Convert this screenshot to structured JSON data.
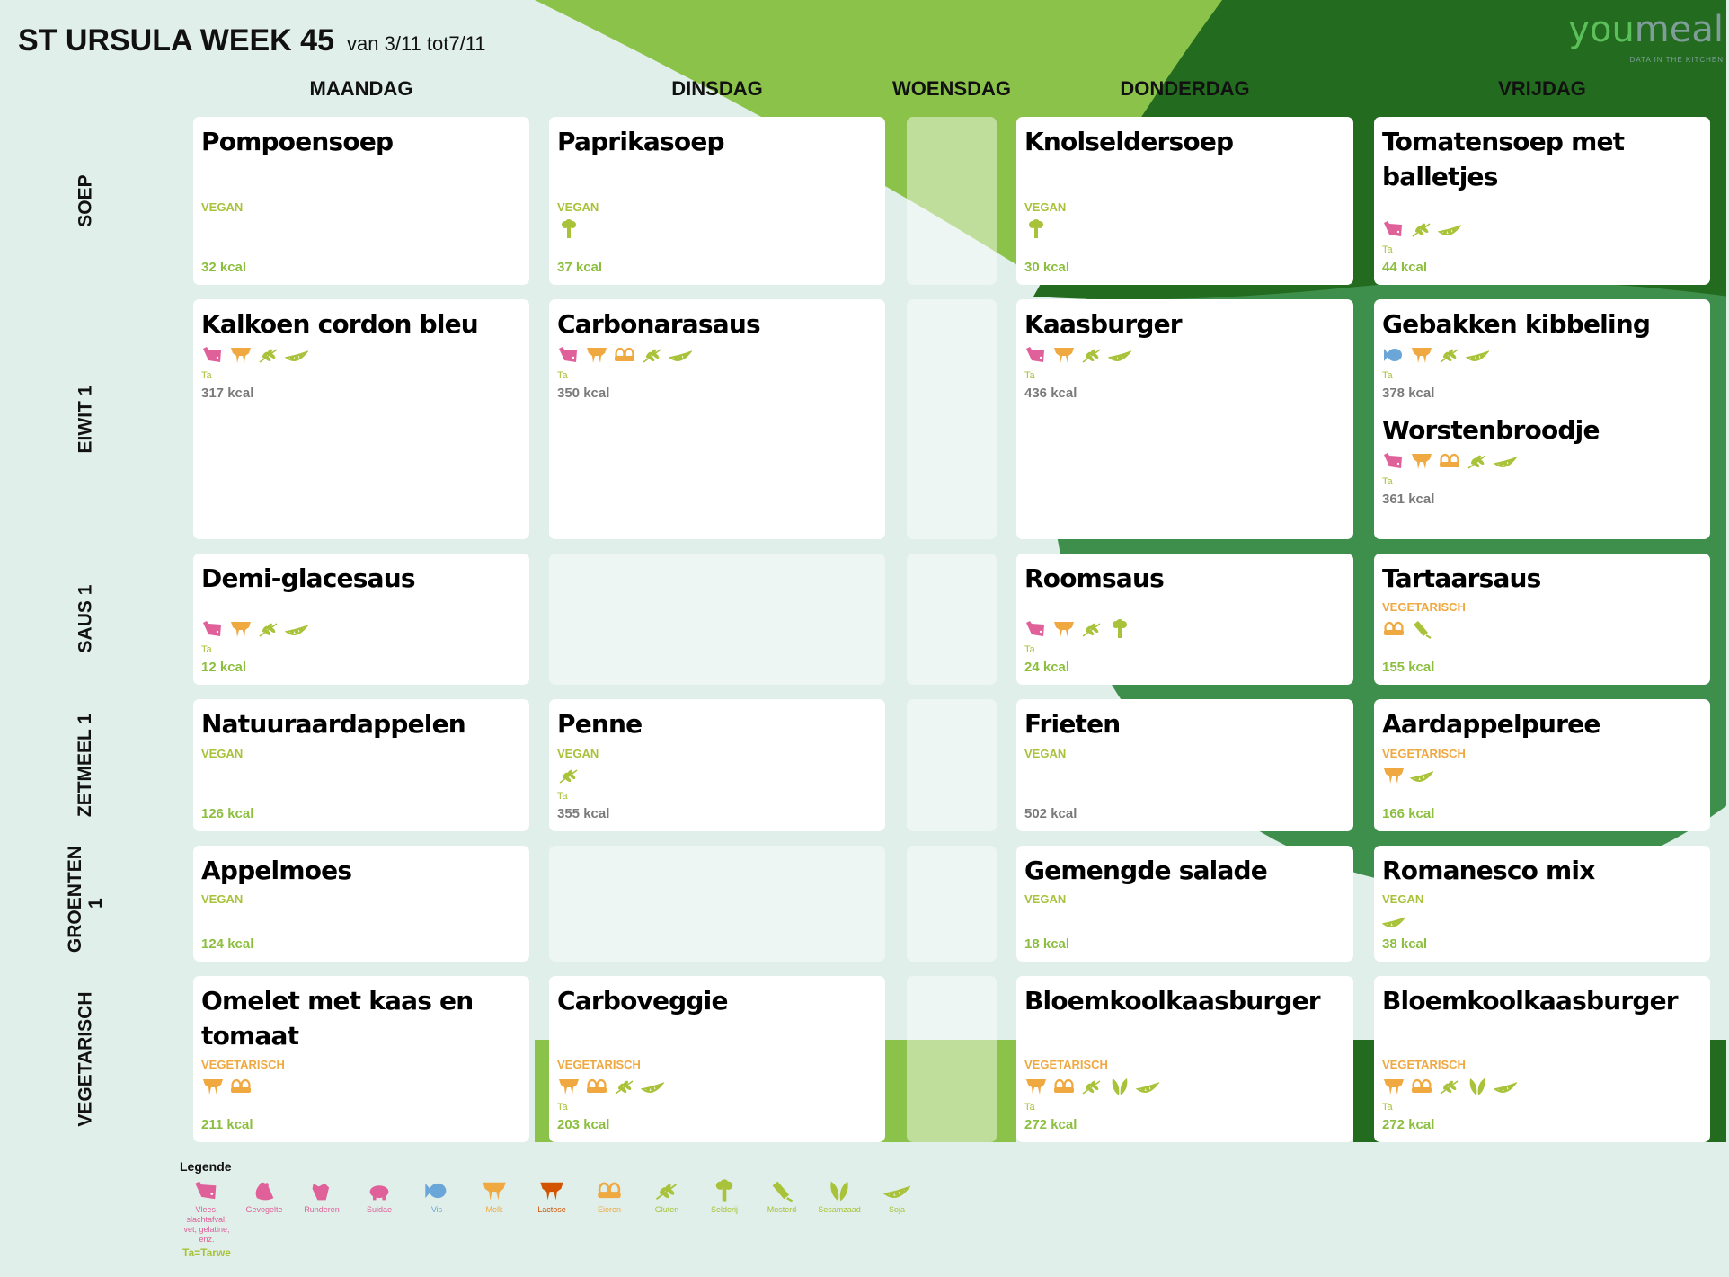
{
  "header": {
    "title": "ST URSULA WEEK 45",
    "subtitle": "van 3/11 tot7/11"
  },
  "logo": {
    "part1": "you",
    "part2": "meal",
    "tagline": "DATA IN THE KITCHEN"
  },
  "colors": {
    "background": "#e0efe9",
    "light_green": "#8bc34a",
    "mid_green": "#3f8f4c",
    "dark_green": "#236b1f",
    "kcal_green": "#8cbf3f",
    "kcal_gray": "#7a7a7a",
    "vegan": "#a8c23a",
    "vegetarian": "#f0a840"
  },
  "days": [
    "MAANDAG",
    "DINSDAG",
    "WOENSDAG",
    "DONDERDAG",
    "VRIJDAG"
  ],
  "rows": [
    {
      "label": "SOEP",
      "cells": [
        [
          {
            "name": "Pompoensoep",
            "diet": "VEGAN",
            "allergens": [],
            "ta": "",
            "kcal": "32 kcal",
            "kcal_color": "green"
          }
        ],
        [
          {
            "name": "Paprikasoep",
            "diet": "VEGAN",
            "allergens": [
              "selderij"
            ],
            "ta": "",
            "kcal": "37 kcal",
            "kcal_color": "green"
          }
        ],
        [],
        [
          {
            "name": "Knolseldersoep",
            "diet": "VEGAN",
            "allergens": [
              "selderij"
            ],
            "ta": "",
            "kcal": "30 kcal",
            "kcal_color": "green"
          }
        ],
        [
          {
            "name": "Tomatensoep met balletjes",
            "diet": "",
            "allergens": [
              "vlees",
              "gluten",
              "soja"
            ],
            "ta": "Ta",
            "kcal": "44 kcal",
            "kcal_color": "green"
          }
        ]
      ]
    },
    {
      "label": "EIWIT 1",
      "cells": [
        [
          {
            "name": "Kalkoen cordon bleu",
            "diet": "",
            "allergens": [
              "vlees",
              "melk",
              "gluten",
              "soja"
            ],
            "ta": "Ta",
            "kcal": "317 kcal",
            "kcal_color": "gray"
          }
        ],
        [
          {
            "name": "Carbonarasaus",
            "diet": "",
            "allergens": [
              "vlees",
              "melk",
              "eieren",
              "gluten",
              "soja"
            ],
            "ta": "Ta",
            "kcal": "350 kcal",
            "kcal_color": "gray"
          }
        ],
        [],
        [
          {
            "name": "Kaasburger",
            "diet": "",
            "allergens": [
              "vlees",
              "melk",
              "gluten",
              "soja"
            ],
            "ta": "Ta",
            "kcal": "436 kcal",
            "kcal_color": "gray"
          }
        ],
        [
          {
            "name": "Gebakken kibbeling",
            "diet": "",
            "allergens": [
              "vis",
              "melk",
              "gluten",
              "soja"
            ],
            "ta": "Ta",
            "kcal": "378 kcal",
            "kcal_color": "gray"
          },
          {
            "name": "Worstenbroodje",
            "diet": "",
            "allergens": [
              "vlees",
              "melk",
              "eieren",
              "gluten",
              "soja"
            ],
            "ta": "Ta",
            "kcal": "361 kcal",
            "kcal_color": "gray"
          }
        ]
      ]
    },
    {
      "label": "SAUS 1",
      "cells": [
        [
          {
            "name": "Demi-glacesaus",
            "diet": "",
            "allergens": [
              "vlees",
              "melk",
              "gluten",
              "soja"
            ],
            "ta": "Ta",
            "kcal": "12 kcal",
            "kcal_color": "green"
          }
        ],
        [],
        [],
        [
          {
            "name": "Roomsaus",
            "diet": "",
            "allergens": [
              "vlees",
              "melk",
              "gluten",
              "selderij"
            ],
            "ta": "Ta",
            "kcal": "24 kcal",
            "kcal_color": "green"
          }
        ],
        [
          {
            "name": "Tartaarsaus",
            "diet": "VEGETARISCH",
            "allergens": [
              "eieren",
              "mosterd"
            ],
            "ta": "",
            "kcal": "155 kcal",
            "kcal_color": "green"
          }
        ]
      ]
    },
    {
      "label": "ZETMEEL 1",
      "cells": [
        [
          {
            "name": "Natuuraardappelen",
            "diet": "VEGAN",
            "allergens": [],
            "ta": "",
            "kcal": "126 kcal",
            "kcal_color": "green"
          }
        ],
        [
          {
            "name": "Penne",
            "diet": "VEGAN",
            "allergens": [
              "gluten"
            ],
            "ta": "Ta",
            "kcal": "355 kcal",
            "kcal_color": "gray"
          }
        ],
        [],
        [
          {
            "name": "Frieten",
            "diet": "VEGAN",
            "allergens": [],
            "ta": "",
            "kcal": "502 kcal",
            "kcal_color": "gray"
          }
        ],
        [
          {
            "name": "Aardappelpuree",
            "diet": "VEGETARISCH",
            "allergens": [
              "melk",
              "soja"
            ],
            "ta": "",
            "kcal": "166 kcal",
            "kcal_color": "green"
          }
        ]
      ]
    },
    {
      "label": "GROENTEN 1",
      "cells": [
        [
          {
            "name": "Appelmoes",
            "diet": "VEGAN",
            "allergens": [],
            "ta": "",
            "kcal": "124 kcal",
            "kcal_color": "green"
          }
        ],
        [],
        [],
        [
          {
            "name": "Gemengde salade",
            "diet": "VEGAN",
            "allergens": [],
            "ta": "",
            "kcal": "18 kcal",
            "kcal_color": "green"
          }
        ],
        [
          {
            "name": "Romanesco mix",
            "diet": "VEGAN",
            "allergens": [
              "soja"
            ],
            "ta": "",
            "kcal": "38 kcal",
            "kcal_color": "green"
          }
        ]
      ]
    },
    {
      "label": "VEGETARISCH",
      "cells": [
        [
          {
            "name": "Omelet met kaas en tomaat",
            "diet": "VEGETARISCH",
            "allergens": [
              "melk",
              "eieren"
            ],
            "ta": "",
            "kcal": "211 kcal",
            "kcal_color": "green"
          }
        ],
        [
          {
            "name": "Carboveggie",
            "diet": "VEGETARISCH",
            "allergens": [
              "melk",
              "eieren",
              "gluten",
              "soja"
            ],
            "ta": "Ta",
            "kcal": "203 kcal",
            "kcal_color": "green"
          }
        ],
        [],
        [
          {
            "name": "Bloemkoolkaasburger",
            "diet": "VEGETARISCH",
            "allergens": [
              "melk",
              "eieren",
              "gluten",
              "sesamzaad",
              "soja"
            ],
            "ta": "Ta",
            "kcal": "272 kcal",
            "kcal_color": "green"
          }
        ],
        [
          {
            "name": "Bloemkoolkaasburger",
            "diet": "VEGETARISCH",
            "allergens": [
              "melk",
              "eieren",
              "gluten",
              "sesamzaad",
              "soja"
            ],
            "ta": "Ta",
            "kcal": "272 kcal",
            "kcal_color": "green"
          }
        ]
      ]
    }
  ],
  "legend": {
    "title": "Legende",
    "items": [
      {
        "icon": "vlees",
        "label": "Vlees, slachtafval, vet, gelatine, enz.",
        "color": "#e0609a"
      },
      {
        "icon": "gevogelte",
        "label": "Gevogelte",
        "color": "#e0609a"
      },
      {
        "icon": "runderen",
        "label": "Runderen",
        "color": "#e0609a"
      },
      {
        "icon": "suidae",
        "label": "Suidae",
        "color": "#e0609a"
      },
      {
        "icon": "vis",
        "label": "Vis",
        "color": "#6aa7d8"
      },
      {
        "icon": "melk",
        "label": "Melk",
        "color": "#f0a840"
      },
      {
        "icon": "lactose",
        "label": "Lactose",
        "color": "#d35400"
      },
      {
        "icon": "eieren",
        "label": "Eieren",
        "color": "#f0a840"
      },
      {
        "icon": "gluten",
        "label": "Gluten",
        "color": "#a8c23a"
      },
      {
        "icon": "selderij",
        "label": "Selderij",
        "color": "#a8c23a"
      },
      {
        "icon": "mosterd",
        "label": "Mosterd",
        "color": "#a8c23a"
      },
      {
        "icon": "sesamzaad",
        "label": "Sesamzaad",
        "color": "#a8c23a"
      },
      {
        "icon": "soja",
        "label": "Soja",
        "color": "#a8c23a"
      }
    ],
    "footnote": "Ta=Tarwe"
  }
}
